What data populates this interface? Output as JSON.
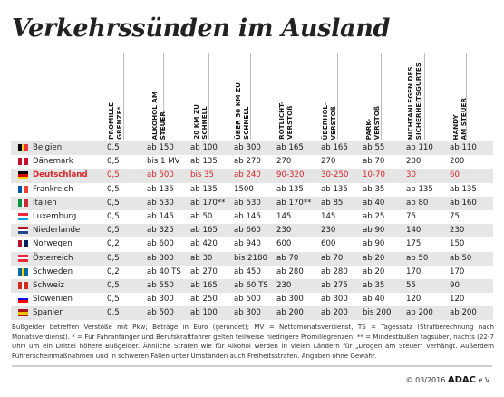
{
  "title": "Verkehrssünden im Ausland",
  "columns": [
    "PROMILLE\nGRENZE*",
    "ALKOHOL AM\nSTEUER",
    "20 KM ZU\nSCHNELL",
    "ÜBER 50 KM ZU\nSCHNELL",
    "ROTLICHT-\nVERSTOß",
    "ÜBERHOL-\nVERSTOß",
    "PARK-\nVERSTOß",
    "NICHTANLEGEN DES\nSICHERHEITSGURTES",
    "HANDY\nAM STEUER"
  ],
  "rows": [
    {
      "country": "Belgien",
      "flag": [
        "#000000",
        "#fcd116",
        "#ef3340"
      ],
      "flag_dir": "v",
      "values": [
        "0,5",
        "ab 150",
        "ab 100",
        "ab 300",
        "ab 165",
        "ab 165",
        "ab 55",
        "ab 110",
        "ab 110"
      ]
    },
    {
      "country": "Dänemark",
      "flag": [
        "#c8102e",
        "#ffffff",
        "#c8102e"
      ],
      "flag_dir": "v",
      "values": [
        "0,5",
        "bis 1 MV",
        "ab 135",
        "ab 270",
        "270",
        "270",
        "ab 70",
        "200",
        "200"
      ]
    },
    {
      "country": "Deutschland",
      "flag": [
        "#000000",
        "#dd0000",
        "#ffce00"
      ],
      "flag_dir": "h",
      "highlight": true,
      "values": [
        "0,5",
        "ab 500",
        "bis 35",
        "ab 240",
        "90-320",
        "30-250",
        "10-70",
        "30",
        "60"
      ]
    },
    {
      "country": "Frankreich",
      "flag": [
        "#0055a4",
        "#ffffff",
        "#ef4135"
      ],
      "flag_dir": "v",
      "values": [
        "0,5",
        "ab 135",
        "ab 135",
        "1500",
        "ab 135",
        "ab 135",
        "ab 35",
        "ab 135",
        "ab 135"
      ]
    },
    {
      "country": "Italien",
      "flag": [
        "#009246",
        "#ffffff",
        "#ce2b37"
      ],
      "flag_dir": "v",
      "values": [
        "0,5",
        "ab 530",
        "ab 170**",
        "ab 530",
        "ab 170**",
        "ab 85",
        "ab 40",
        "ab 80",
        "ab 160"
      ]
    },
    {
      "country": "Luxemburg",
      "flag": [
        "#ed2939",
        "#ffffff",
        "#00a1de"
      ],
      "flag_dir": "h",
      "values": [
        "0,5",
        "ab 145",
        "ab 50",
        "ab 145",
        "145",
        "145",
        "ab 25",
        "75",
        "75"
      ]
    },
    {
      "country": "Niederlande",
      "flag": [
        "#ae1c28",
        "#ffffff",
        "#21468b"
      ],
      "flag_dir": "h",
      "values": [
        "0,5",
        "ab 325",
        "ab 165",
        "ab 660",
        "230",
        "230",
        "ab 90",
        "140",
        "230"
      ]
    },
    {
      "country": "Norwegen",
      "flag": [
        "#ba0c2f",
        "#ffffff",
        "#00205b"
      ],
      "flag_dir": "v",
      "values": [
        "0,2",
        "ab 600",
        "ab 420",
        "ab 940",
        "600",
        "600",
        "ab 90",
        "175",
        "150"
      ]
    },
    {
      "country": "Österreich",
      "flag": [
        "#ed2939",
        "#ffffff",
        "#ed2939"
      ],
      "flag_dir": "h",
      "values": [
        "0,5",
        "ab 300",
        "ab 30",
        "bis 2180",
        "ab 70",
        "ab 70",
        "ab 20",
        "ab 50",
        "ab 50"
      ]
    },
    {
      "country": "Schweden",
      "flag": [
        "#006aa7",
        "#fecc00",
        "#006aa7"
      ],
      "flag_dir": "v",
      "values": [
        "0,2",
        "ab 40 TS",
        "ab 270",
        "ab 450",
        "ab 280",
        "ab 280",
        "ab 20",
        "170",
        "170"
      ]
    },
    {
      "country": "Schweiz",
      "flag": [
        "#d52b1e",
        "#ffffff",
        "#d52b1e"
      ],
      "flag_dir": "v",
      "values": [
        "0,5",
        "ab 550",
        "ab 165",
        "ab 60 TS",
        "230",
        "ab 275",
        "ab 35",
        "55",
        "90"
      ]
    },
    {
      "country": "Slowenien",
      "flag": [
        "#ffffff",
        "#0000ff",
        "#ff0000"
      ],
      "flag_dir": "h",
      "values": [
        "0,5",
        "ab 300",
        "ab 250",
        "ab 500",
        "ab 300",
        "ab 300",
        "ab 40",
        "120",
        "120"
      ]
    },
    {
      "country": "Spanien",
      "flag": [
        "#aa151b",
        "#f1bf00",
        "#aa151b"
      ],
      "flag_dir": "h",
      "values": [
        "0,5",
        "ab 500",
        "ab 100",
        "ab 300",
        "ab 200",
        "ab 200",
        "bis 200",
        "ab 200",
        "ab 200"
      ]
    }
  ],
  "footnote": "Bußgelder betreffen Verstöße mit Pkw; Beträge in Euro (gerundet); MV = Nettomonatsverdienst, TS = Tagessatz (Strafberechnung nach Monatsverdienst). * = Für Fahranfänger und Berufskraftfahrer gelten teilweise niedrigere Promillegrenzen. ** = Mindestbußen tagsüber, nachts (22-7 Uhr) um ein Drittel höhere Bußgelder. Ähnliche Strafen wie für Alkohol werden in vielen Ländern für „Drogen am Steuer\" verhängt. Außerdem Führerscheinmaßnahmen und in schweren Fällen unter Umständen auch Freiheitsstrafen. Angaben ohne Gewähr.",
  "copyright": {
    "prefix": "© 03/2016",
    "brand": "ADAC",
    "suffix": "e.V."
  }
}
